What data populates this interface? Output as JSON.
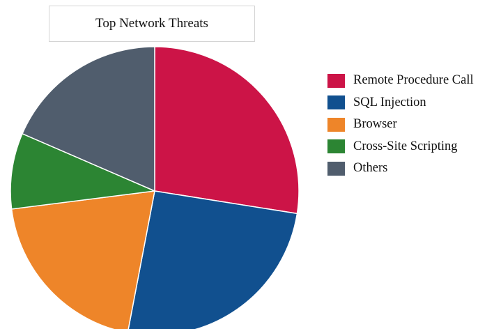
{
  "chart_data": {
    "type": "pie",
    "title": "Top Network Threats",
    "categories": [
      "Remote Procedure Call",
      "SQL Injection",
      "Browser",
      "Cross-Site Scripting",
      "Others"
    ],
    "values": [
      27.5,
      25.5,
      20,
      8.5,
      18.5
    ],
    "colors": [
      "#cc1447",
      "#11508f",
      "#ee8529",
      "#2c8533",
      "#505d6d"
    ],
    "legend_position": "right"
  }
}
